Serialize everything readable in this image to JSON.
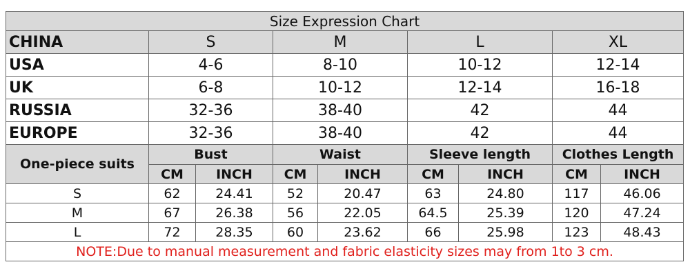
{
  "title": "Size Expression Chart",
  "size_table": {
    "header": [
      "CHINA",
      "S",
      "M",
      "L",
      "XL"
    ],
    "rows": [
      [
        "USA",
        "4-6",
        "8-10",
        "10-12",
        "12-14"
      ],
      [
        "UK",
        "6-8",
        "10-12",
        "12-14",
        "16-18"
      ],
      [
        "RUSSIA",
        "32-36",
        "38-40",
        "42",
        "44"
      ],
      [
        "EUROPE",
        "32-36",
        "38-40",
        "42",
        "44"
      ]
    ]
  },
  "measure_table": {
    "row_header": "One-piece suits",
    "groups": [
      "Bust",
      "Waist",
      "Sleeve length",
      "Clothes Length"
    ],
    "units": [
      "CM",
      "INCH",
      "CM",
      "INCH",
      "CM",
      "INCH",
      "CM",
      "INCH"
    ],
    "rows": [
      [
        "S",
        "62",
        "24.41",
        "52",
        "20.47",
        "63",
        "24.80",
        "117",
        "46.06"
      ],
      [
        "M",
        "67",
        "26.38",
        "56",
        "22.05",
        "64.5",
        "25.39",
        "120",
        "47.24"
      ],
      [
        "L",
        "72",
        "28.35",
        "60",
        "23.62",
        "66",
        "25.98",
        "123",
        "48.43"
      ]
    ]
  },
  "note": "NOTE:Due to manual measurement and fabric elasticity sizes may from 1to 3 cm."
}
